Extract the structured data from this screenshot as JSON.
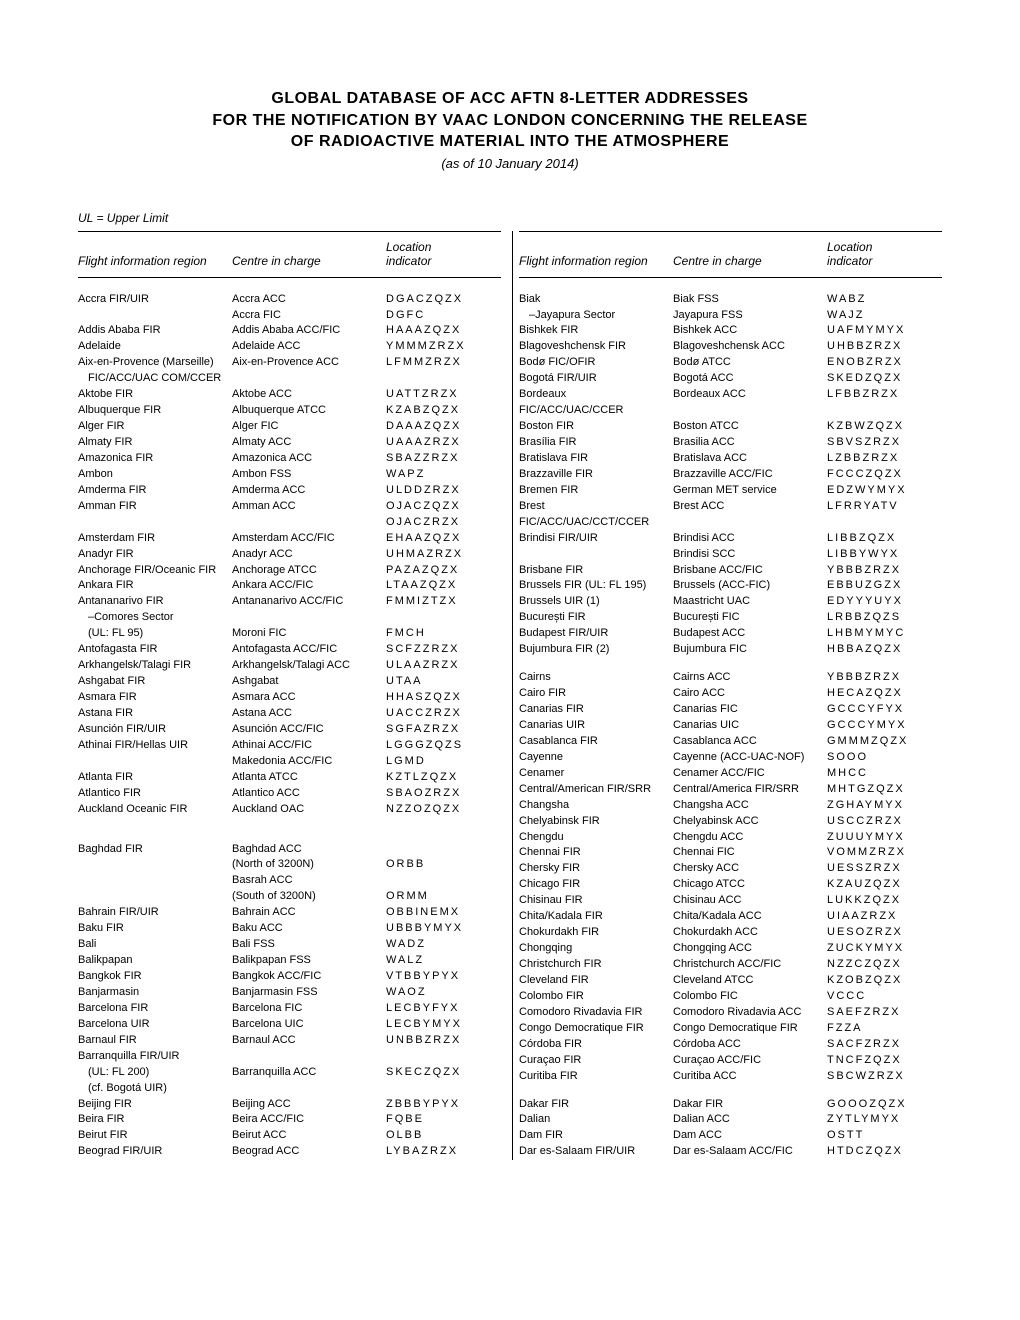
{
  "title_lines": [
    "GLOBAL DATABASE OF ACC AFTN 8-LETTER ADDRESSES",
    "FOR THE NOTIFICATION BY VAAC LONDON CONCERNING THE RELEASE",
    "OF RADIOACTIVE MATERIAL INTO THE ATMOSPHERE"
  ],
  "asof": "(as of 10 January 2014)",
  "note": "UL = Upper Limit",
  "headers": {
    "c1": "Flight information region",
    "c2": "Centre in charge",
    "c3_l1": "Location",
    "c3_l2": "indicator"
  },
  "left": [
    {
      "r": "Accra FIR/UIR",
      "c": "Accra ACC",
      "i": "DGACZQZX"
    },
    {
      "r": "",
      "c": "Accra FIC",
      "i": "DGFC"
    },
    {
      "r": "Addis Ababa FIR",
      "c": "Addis Ababa ACC/FIC",
      "i": "HAAAZQZX"
    },
    {
      "r": "Adelaide",
      "c": "Adelaide ACC",
      "i": "YMMMZRZX"
    },
    {
      "r": "Aix-en-Provence (Marseille)",
      "c": "Aix-en-Provence ACC",
      "i": "LFMMZRZX"
    },
    {
      "r": "FIC/ACC/UAC COM/CCER",
      "c": "",
      "i": "",
      "indent": true
    },
    {
      "r": "Aktobe FIR",
      "c": "Aktobe ACC",
      "i": "UATTZRZX"
    },
    {
      "r": "Albuquerque FIR",
      "c": "Albuquerque ATCC",
      "i": "KZABZQZX"
    },
    {
      "r": "Alger FIR",
      "c": "Alger FIC",
      "i": "DAAAZQZX"
    },
    {
      "r": "Almaty FIR",
      "c": "Almaty ACC",
      "i": "UAAAZRZX"
    },
    {
      "r": "Amazonica FIR",
      "c": "Amazonica ACC",
      "i": "SBAZZRZX"
    },
    {
      "r": "Ambon",
      "c": "Ambon FSS",
      "i": "WAPZ"
    },
    {
      "r": "Amderma FIR",
      "c": "Amderma ACC",
      "i": "ULDDZRZX"
    },
    {
      "r": "Amman FIR",
      "c": "Amman ACC",
      "i": "OJACZQZX"
    },
    {
      "r": "",
      "c": "",
      "i": "OJACZRZX"
    },
    {
      "r": "Amsterdam FIR",
      "c": "Amsterdam ACC/FIC",
      "i": "EHAAZQZX"
    },
    {
      "r": "Anadyr FIR",
      "c": "Anadyr ACC",
      "i": "UHMAZRZX"
    },
    {
      "r": "Anchorage FIR/Oceanic FIR",
      "c": "Anchorage ATCC",
      "i": "PAZAZQZX"
    },
    {
      "r": "Ankara FIR",
      "c": "Ankara ACC/FIC",
      "i": "LTAAZQZX"
    },
    {
      "r": "Antananarivo FIR",
      "c": "Antananarivo ACC/FIC",
      "i": "FMMIZTZX"
    },
    {
      "r": "–Comores Sector",
      "c": "",
      "i": "",
      "indent": true
    },
    {
      "r": "(UL: FL 95)",
      "c": "Moroni FIC",
      "i": "FMCH",
      "indent": true
    },
    {
      "r": "Antofagasta FIR",
      "c": "Antofagasta ACC/FIC",
      "i": "SCFZZRZX"
    },
    {
      "r": "Arkhangelsk/Talagi FIR",
      "c": "Arkhangelsk/Talagi ACC",
      "i": "ULAAZRZX"
    },
    {
      "r": "Ashgabat FIR",
      "c": "Ashgabat",
      "i": "UTAA"
    },
    {
      "r": "Asmara FIR",
      "c": "Asmara ACC",
      "i": "HHASZQZX"
    },
    {
      "r": "Astana FIR",
      "c": "Astana ACC",
      "i": "UACCZRZX"
    },
    {
      "r": "Asunción FIR/UIR",
      "c": "Asunción ACC/FIC",
      "i": "SGFAZRZX"
    },
    {
      "r": "Athinai FIR/Hellas UIR",
      "c": "Athinai ACC/FIC",
      "i": "LGGGZQZS"
    },
    {
      "r": "",
      "c": "Makedonia ACC/FIC",
      "i": "LGMD"
    },
    {
      "r": "Atlanta FIR",
      "c": "Atlanta ATCC",
      "i": "KZTLZQZX"
    },
    {
      "r": "Atlantico FIR",
      "c": "Atlantico ACC",
      "i": "SBAOZRZX"
    },
    {
      "r": "Auckland Oceanic FIR",
      "c": "Auckland OAC",
      "i": "NZZOZQZX"
    },
    {
      "spacer": true
    },
    {
      "spacer": true
    },
    {
      "r": "Baghdad FIR",
      "c": "Baghdad ACC",
      "i": ""
    },
    {
      "r": "",
      "c": "(North of 3200N)",
      "i": "ORBB"
    },
    {
      "r": "",
      "c": "Basrah ACC",
      "i": ""
    },
    {
      "r": "",
      "c": "(South of 3200N)",
      "i": "ORMM"
    },
    {
      "r": "Bahrain FIR/UIR",
      "c": "Bahrain ACC",
      "i": "OBBINEMX"
    },
    {
      "r": "Baku FIR",
      "c": "Baku ACC",
      "i": "UBBBYMYX"
    },
    {
      "r": "Bali",
      "c": "Bali FSS",
      "i": "WADZ"
    },
    {
      "r": "Balikpapan",
      "c": "Balikpapan FSS",
      "i": "WALZ"
    },
    {
      "r": "Bangkok FIR",
      "c": "Bangkok ACC/FIC",
      "i": "VTBBYPYX"
    },
    {
      "r": "Banjarmasin",
      "c": "Banjarmasin FSS",
      "i": "WAOZ"
    },
    {
      "r": "Barcelona FIR",
      "c": "Barcelona FIC",
      "i": "LECBYFYX"
    },
    {
      "r": "Barcelona UIR",
      "c": "Barcelona UIC",
      "i": "LECBYMYX"
    },
    {
      "r": "Barnaul FIR",
      "c": "Barnaul ACC",
      "i": "UNBBZRZX"
    },
    {
      "r": "Barranquilla FIR/UIR",
      "c": "",
      "i": ""
    },
    {
      "r": "(UL: FL 200)",
      "c": "Barranquilla ACC",
      "i": "SKECZQZX",
      "indent": true
    },
    {
      "r": "(cf. Bogotá UIR)",
      "c": "",
      "i": "",
      "indent": true
    },
    {
      "r": "Beijing FIR",
      "c": "Beijing ACC",
      "i": "ZBBBYPYX"
    },
    {
      "r": "Beira FIR",
      "c": "Beira ACC/FIC",
      "i": "FQBE"
    },
    {
      "r": "Beirut FIR",
      "c": "Beirut ACC",
      "i": "OLBB"
    },
    {
      "r": "Beograd FIR/UIR",
      "c": "Beograd ACC",
      "i": "LYBAZRZX"
    }
  ],
  "right": [
    {
      "r": "Biak",
      "c": "Biak FSS",
      "i": "WABZ"
    },
    {
      "r": "–Jayapura Sector",
      "c": "Jayapura FSS",
      "i": "WAJZ",
      "indent": true
    },
    {
      "r": "Bishkek FIR",
      "c": "Bishkek ACC",
      "i": "UAFMYMYX"
    },
    {
      "r": "Blagoveshchensk FIR",
      "c": "Blagoveshchensk ACC",
      "i": "UHBBZRZX"
    },
    {
      "r": "Bodø FIC/OFIR",
      "c": "Bodø ATCC",
      "i": "ENOBZRZX"
    },
    {
      "r": "Bogotá FIR/UIR",
      "c": "Bogotá ACC",
      "i": "SKEDZQZX"
    },
    {
      "r": "Bordeaux FIC/ACC/UAC/CCER",
      "c": "Bordeaux ACC",
      "i": "LFBBZRZX"
    },
    {
      "r": "Boston FIR",
      "c": "Boston ATCC",
      "i": "KZBWZQZX"
    },
    {
      "r": "Brasília FIR",
      "c": "Brasilia ACC",
      "i": "SBVSZRZX"
    },
    {
      "r": "Bratislava FIR",
      "c": "Bratislava ACC",
      "i": "LZBBZRZX"
    },
    {
      "r": "Brazzaville FIR",
      "c": "Brazzaville ACC/FIC",
      "i": "FCCCZQZX"
    },
    {
      "r": "Bremen FIR",
      "c": "German MET service",
      "i": "EDZWYMYX"
    },
    {
      "r": "Brest FIC/ACC/UAC/CCT/CCER",
      "c": "Brest ACC",
      "i": "LFRRYATV"
    },
    {
      "r": "Brindisi FIR/UIR",
      "c": "Brindisi ACC",
      "i": "LIBBZQZX"
    },
    {
      "r": "",
      "c": "Brindisi SCC",
      "i": "LIBBYWYX"
    },
    {
      "r": "Brisbane FIR",
      "c": "Brisbane ACC/FIC",
      "i": "YBBBZRZX"
    },
    {
      "r": "Brussels FIR (UL: FL 195)",
      "c": "Brussels (ACC-FIC)",
      "i": "EBBUZGZX"
    },
    {
      "r": "Brussels UIR (1)",
      "c": "Maastricht UAC",
      "i": "EDYYYUYX"
    },
    {
      "r": "București FIR",
      "c": "București FIC",
      "i": "LRBBZQZS"
    },
    {
      "r": "Budapest FIR/UIR",
      "c": "Budapest ACC",
      "i": "LHBMYMYC"
    },
    {
      "r": "Bujumbura FIR (2)",
      "c": "Bujumbura FIC",
      "i": "HBBAZQZX"
    },
    {
      "spacer": true
    },
    {
      "r": "Cairns",
      "c": "Cairns ACC",
      "i": "YBBBZRZX"
    },
    {
      "r": "Cairo FIR",
      "c": "Cairo ACC",
      "i": "HECAZQZX"
    },
    {
      "r": "Canarias FIR",
      "c": "Canarias FIC",
      "i": "GCCCYFYX"
    },
    {
      "r": "Canarias UIR",
      "c": "Canarias UIC",
      "i": "GCCCYMYX"
    },
    {
      "r": "Casablanca FIR",
      "c": "Casablanca ACC",
      "i": "GMMMZQZX"
    },
    {
      "r": "Cayenne",
      "c": "Cayenne (ACC-UAC-NOF)",
      "i": "SOOO"
    },
    {
      "r": "Cenamer",
      "c": "Cenamer ACC/FIC",
      "i": "MHCC"
    },
    {
      "r": "Central/American FIR/SRR",
      "c": "Central/America FIR/SRR",
      "i": "MHTGZQZX"
    },
    {
      "r": "Changsha",
      "c": "Changsha ACC",
      "i": "ZGHAYMYX"
    },
    {
      "r": "Chelyabinsk FIR",
      "c": "Chelyabinsk ACC",
      "i": "USCCZRZX"
    },
    {
      "r": "Chengdu",
      "c": "Chengdu ACC",
      "i": "ZUUUYMYX"
    },
    {
      "r": "Chennai FIR",
      "c": "Chennai FIC",
      "i": "VOMMZRZX"
    },
    {
      "r": "Chersky FIR",
      "c": "Chersky ACC",
      "i": "UESSZRZX"
    },
    {
      "r": "Chicago FIR",
      "c": "Chicago ATCC",
      "i": "KZAUZQZX"
    },
    {
      "r": "Chisinau FIR",
      "c": "Chisinau ACC",
      "i": "LUKKZQZX"
    },
    {
      "r": "Chita/Kadala FIR",
      "c": "Chita/Kadala ACC",
      "i": "UIAAZRZX"
    },
    {
      "r": "Chokurdakh FIR",
      "c": "Chokurdakh ACC",
      "i": "UESOZRZX"
    },
    {
      "r": "Chongqing",
      "c": "Chongqing ACC",
      "i": "ZUCKYMYX"
    },
    {
      "r": "Christchurch FIR",
      "c": "Christchurch ACC/FIC",
      "i": "NZZCZQZX"
    },
    {
      "r": "Cleveland FIR",
      "c": "Cleveland ATCC",
      "i": "KZOBZQZX"
    },
    {
      "r": "Colombo FIR",
      "c": "Colombo FIC",
      "i": "VCCC"
    },
    {
      "r": "Comodoro Rivadavia FIR",
      "c": "Comodoro Rivadavia ACC",
      "i": "SAEFZRZX"
    },
    {
      "r": "Congo Democratique FIR",
      "c": "Congo Democratique FIR",
      "i": "FZZA"
    },
    {
      "r": "Córdoba FIR",
      "c": "Córdoba ACC",
      "i": "SACFZRZX"
    },
    {
      "r": "Curaçao FIR",
      "c": "Curaçao ACC/FIC",
      "i": "TNCFZQZX"
    },
    {
      "r": "Curitiba FIR",
      "c": "Curitiba ACC",
      "i": "SBCWZRZX"
    },
    {
      "spacer": true
    },
    {
      "r": "Dakar FIR",
      "c": "Dakar FIR",
      "i": "GOOOZQZX"
    },
    {
      "r": "Dalian",
      "c": "Dalian ACC",
      "i": "ZYTLYMYX"
    },
    {
      "r": "Dam FIR",
      "c": "Dam ACC",
      "i": "OSTT"
    },
    {
      "r": "Dar es-Salaam FIR/UIR",
      "c": "Dar es-Salaam ACC/FIC",
      "i": "HTDCZQZX"
    }
  ]
}
